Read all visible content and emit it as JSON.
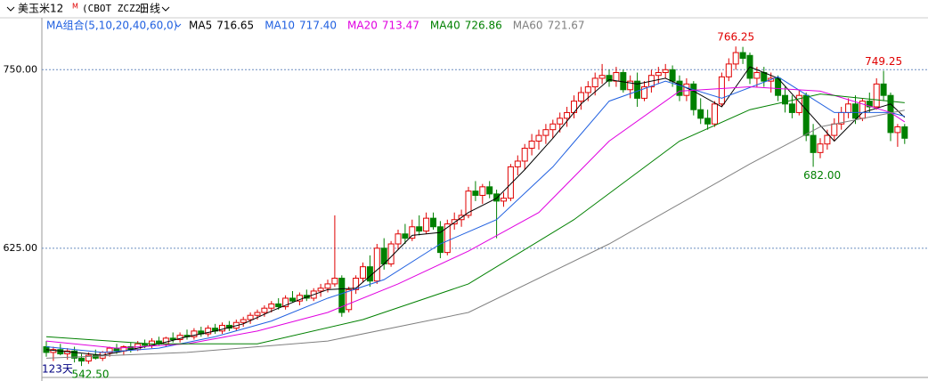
{
  "chart_data": {
    "type": "candlestick",
    "title": "美玉米12",
    "title_sup": "M",
    "symbol": "(CBOT ZCZ2)",
    "period": "日线",
    "ma_group": "MA组合(5,10,20,40,60,0)",
    "count_label": "123天",
    "ylim": [
      532,
      777
    ],
    "yticks": [
      {
        "value": 625,
        "label": "625.00"
      },
      {
        "value": 750,
        "label": "750.00"
      }
    ],
    "grid": true,
    "up_color": "#e00000",
    "down_color": "#008000",
    "candles": [
      [
        556,
        560,
        549,
        552
      ],
      [
        552,
        556,
        546,
        554
      ],
      [
        554,
        558,
        550,
        551
      ],
      [
        551,
        555,
        547,
        553
      ],
      [
        553,
        556,
        545,
        548
      ],
      [
        548,
        551,
        542.5,
        546
      ],
      [
        546,
        552,
        544,
        550
      ],
      [
        550,
        554,
        547,
        548
      ],
      [
        548,
        553,
        546,
        552
      ],
      [
        552,
        556,
        549,
        555
      ],
      [
        555,
        558,
        551,
        553
      ],
      [
        553,
        557,
        550,
        556
      ],
      [
        556,
        559,
        552,
        554
      ],
      [
        554,
        560,
        553,
        558
      ],
      [
        558,
        561,
        555,
        557
      ],
      [
        557,
        562,
        555,
        560
      ],
      [
        560,
        563,
        557,
        558
      ],
      [
        558,
        563,
        556,
        562
      ],
      [
        562,
        566,
        559,
        561
      ],
      [
        561,
        566,
        559,
        564
      ],
      [
        564,
        568,
        561,
        563
      ],
      [
        563,
        569,
        561,
        567
      ],
      [
        567,
        570,
        563,
        565
      ],
      [
        565,
        571,
        563,
        569
      ],
      [
        569,
        572,
        565,
        567
      ],
      [
        567,
        573,
        565,
        571
      ],
      [
        571,
        574,
        567,
        569
      ],
      [
        569,
        575,
        567,
        573
      ],
      [
        573,
        577,
        570,
        575
      ],
      [
        575,
        580,
        572,
        578
      ],
      [
        578,
        582,
        575,
        580
      ],
      [
        580,
        585,
        577,
        583
      ],
      [
        583,
        588,
        580,
        586
      ],
      [
        586,
        590,
        582,
        584
      ],
      [
        584,
        592,
        582,
        590
      ],
      [
        590,
        595,
        587,
        588
      ],
      [
        588,
        594,
        585,
        592
      ],
      [
        592,
        596,
        588,
        590
      ],
      [
        590,
        597,
        588,
        595
      ],
      [
        595,
        600,
        591,
        597
      ],
      [
        597,
        603,
        594,
        600
      ],
      [
        600,
        648,
        598,
        604
      ],
      [
        604,
        606,
        577,
        580
      ],
      [
        582,
        598,
        580,
        596
      ],
      [
        596,
        606,
        593,
        604
      ],
      [
        604,
        615,
        601,
        612
      ],
      [
        612,
        620,
        598,
        602
      ],
      [
        602,
        628,
        600,
        625
      ],
      [
        625,
        632,
        610,
        614
      ],
      [
        614,
        630,
        612,
        628
      ],
      [
        628,
        638,
        624,
        635
      ],
      [
        635,
        642,
        628,
        632
      ],
      [
        632,
        645,
        630,
        640
      ],
      [
        640,
        648,
        634,
        637
      ],
      [
        637,
        650,
        635,
        646
      ],
      [
        646,
        650,
        638,
        640
      ],
      [
        640,
        644,
        618,
        622
      ],
      [
        622,
        645,
        620,
        642
      ],
      [
        642,
        650,
        638,
        645
      ],
      [
        645,
        652,
        640,
        648
      ],
      [
        648,
        668,
        646,
        665
      ],
      [
        665,
        672,
        658,
        662
      ],
      [
        662,
        670,
        656,
        668
      ],
      [
        668,
        672,
        660,
        663
      ],
      [
        663,
        666,
        632,
        658
      ],
      [
        658,
        664,
        654,
        660
      ],
      [
        660,
        684,
        658,
        682
      ],
      [
        682,
        690,
        676,
        686
      ],
      [
        686,
        698,
        680,
        695
      ],
      [
        695,
        705,
        690,
        700
      ],
      [
        700,
        708,
        694,
        704
      ],
      [
        704,
        712,
        698,
        708
      ],
      [
        708,
        715,
        702,
        712
      ],
      [
        712,
        720,
        706,
        716
      ],
      [
        716,
        724,
        710,
        720
      ],
      [
        720,
        732,
        716,
        728
      ],
      [
        728,
        738,
        722,
        734
      ],
      [
        734,
        742,
        728,
        738
      ],
      [
        738,
        748,
        732,
        744
      ],
      [
        744,
        754,
        740,
        746
      ],
      [
        746,
        750,
        738,
        742
      ],
      [
        742,
        752,
        738,
        748
      ],
      [
        748,
        750,
        734,
        736
      ],
      [
        736,
        746,
        730,
        742
      ],
      [
        742,
        748,
        724,
        730
      ],
      [
        730,
        742,
        728,
        738
      ],
      [
        738,
        750,
        734,
        746
      ],
      [
        746,
        752,
        740,
        748
      ],
      [
        748,
        754,
        744,
        750
      ],
      [
        750,
        753,
        738,
        742
      ],
      [
        742,
        746,
        728,
        732
      ],
      [
        732,
        744,
        728,
        740
      ],
      [
        740,
        742,
        718,
        722
      ],
      [
        722,
        730,
        712,
        716
      ],
      [
        716,
        722,
        708,
        712
      ],
      [
        712,
        728,
        710,
        726
      ],
      [
        726,
        748,
        724,
        745
      ],
      [
        745,
        758,
        742,
        754
      ],
      [
        754,
        766.25,
        750,
        762
      ],
      [
        762,
        766,
        754,
        758
      ],
      [
        760,
        762,
        740,
        744
      ],
      [
        744,
        752,
        738,
        748
      ],
      [
        748,
        752,
        738,
        742
      ],
      [
        742,
        748,
        734,
        744
      ],
      [
        744,
        746,
        728,
        732
      ],
      [
        732,
        738,
        720,
        726
      ],
      [
        726,
        732,
        716,
        720
      ],
      [
        720,
        736,
        718,
        732
      ],
      [
        732,
        734,
        700,
        704
      ],
      [
        704,
        712,
        682,
        692
      ],
      [
        692,
        702,
        688,
        698
      ],
      [
        698,
        708,
        694,
        704
      ],
      [
        704,
        716,
        700,
        712
      ],
      [
        712,
        724,
        708,
        720
      ],
      [
        720,
        730,
        716,
        726
      ],
      [
        726,
        732,
        712,
        716
      ],
      [
        716,
        730,
        714,
        728
      ],
      [
        728,
        734,
        720,
        724
      ],
      [
        724,
        744,
        722,
        740
      ],
      [
        740,
        749.25,
        728,
        732
      ],
      [
        732,
        734,
        700,
        706
      ],
      [
        706,
        712,
        696,
        710
      ],
      [
        710,
        712,
        698,
        702
      ]
    ],
    "series": [
      {
        "name": "MA5",
        "color": "#000000",
        "legend_value": 716.65,
        "x": [
          0,
          4,
          8,
          12,
          16,
          20,
          24,
          28,
          32,
          36,
          40,
          44,
          48,
          52,
          56,
          60,
          64,
          68,
          72,
          76,
          80,
          84,
          88,
          92,
          96,
          100,
          104,
          108,
          112,
          116,
          120,
          122
        ],
        "values": [
          554,
          552,
          550,
          554,
          558,
          563,
          567,
          572,
          581,
          589,
          596,
          597,
          614,
          634,
          636,
          650,
          660,
          680,
          702,
          726,
          743,
          740,
          744,
          735,
          724,
          752,
          744,
          722,
          700,
          720,
          726,
          716.65
        ]
      },
      {
        "name": "MA10",
        "color": "#2060e0",
        "legend_value": {
          "value": 717.4,
          "label": "717.40"
        },
        "x": [
          0,
          8,
          16,
          24,
          32,
          40,
          48,
          56,
          64,
          72,
          80,
          88,
          96,
          104,
          112,
          120,
          122
        ],
        "values": [
          556,
          552,
          555,
          563,
          574,
          590,
          603,
          628,
          645,
          682,
          728,
          742,
          730,
          745,
          720,
          720,
          717.4
        ]
      },
      {
        "name": "MA20",
        "color": "#e000e0",
        "legend_value": 713.47,
        "x": [
          0,
          10,
          20,
          30,
          40,
          50,
          60,
          70,
          80,
          90,
          100,
          110,
          120,
          122
        ],
        "values": [
          560,
          555,
          558,
          567,
          580,
          600,
          623,
          650,
          700,
          735,
          738,
          735,
          720,
          713.47
        ]
      },
      {
        "name": "MA40",
        "color": "#008000",
        "legend_value": 726.86,
        "x": [
          0,
          15,
          30,
          45,
          60,
          75,
          90,
          100,
          110,
          122
        ],
        "values": [
          563,
          558,
          558,
          575,
          600,
          645,
          700,
          722,
          733,
          726.86
        ]
      },
      {
        "name": "MA60",
        "color": "#808080",
        "legend_value": 721.67,
        "x": [
          0,
          20,
          40,
          60,
          80,
          100,
          110,
          122
        ],
        "values": [
          548,
          552,
          560,
          580,
          628,
          684,
          710,
          721.67
        ]
      }
    ],
    "annotations": [
      {
        "value": 766.25,
        "label": "766.25"
      },
      {
        "value": 749.25,
        "label": "749.25"
      },
      {
        "value": 682,
        "label": "682.00"
      },
      {
        "value": 542.5,
        "label": "542.50"
      }
    ]
  }
}
